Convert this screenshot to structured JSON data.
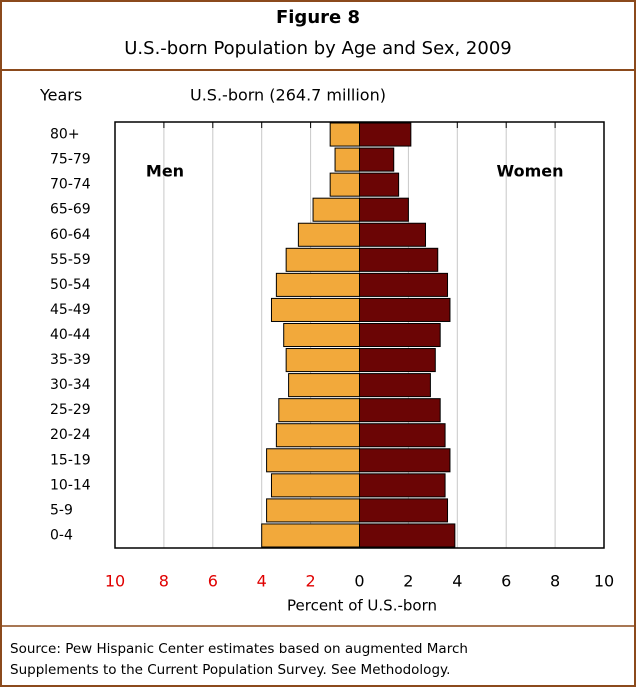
{
  "chart_data": {
    "type": "pyramid",
    "title": "Figure 8",
    "subtitle": "U.S.-born Population by Age and Sex, 2009",
    "y_axis_title": "Years",
    "population_label": "U.S.-born (264.7 million)",
    "x_axis_title": "Percent of U.S.-born",
    "source": [
      "Source:  Pew Hispanic Center estimates based on augmented March",
      "Supplements to the Current Population Survey. See Methodology."
    ],
    "categories": [
      "0-4",
      "5-9",
      "10-14",
      "15-19",
      "20-24",
      "25-29",
      "30-34",
      "35-39",
      "40-44",
      "45-49",
      "50-54",
      "55-59",
      "60-64",
      "65-69",
      "70-74",
      "75-79",
      "80+"
    ],
    "series": [
      {
        "name": "Men",
        "color": "#f2a93b",
        "values": [
          -4.0,
          -3.8,
          -3.6,
          -3.8,
          -3.4,
          -3.3,
          -2.9,
          -3.0,
          -3.1,
          -3.6,
          -3.4,
          -3.0,
          -2.5,
          -1.9,
          -1.2,
          -1.0,
          -1.2
        ]
      },
      {
        "name": "Women",
        "color": "#6b0505",
        "values": [
          3.9,
          3.6,
          3.5,
          3.7,
          3.5,
          3.3,
          2.9,
          3.1,
          3.3,
          3.7,
          3.6,
          3.2,
          2.7,
          2.0,
          1.6,
          1.4,
          2.1
        ]
      }
    ],
    "xlim": [
      -10,
      10
    ],
    "xticks": [
      {
        "value": -10,
        "label": "10"
      },
      {
        "value": -8,
        "label": "8"
      },
      {
        "value": -6,
        "label": "6"
      },
      {
        "value": -4,
        "label": "4"
      },
      {
        "value": -2,
        "label": "2"
      },
      0,
      2,
      4,
      6,
      8,
      10
    ],
    "grid": true
  }
}
